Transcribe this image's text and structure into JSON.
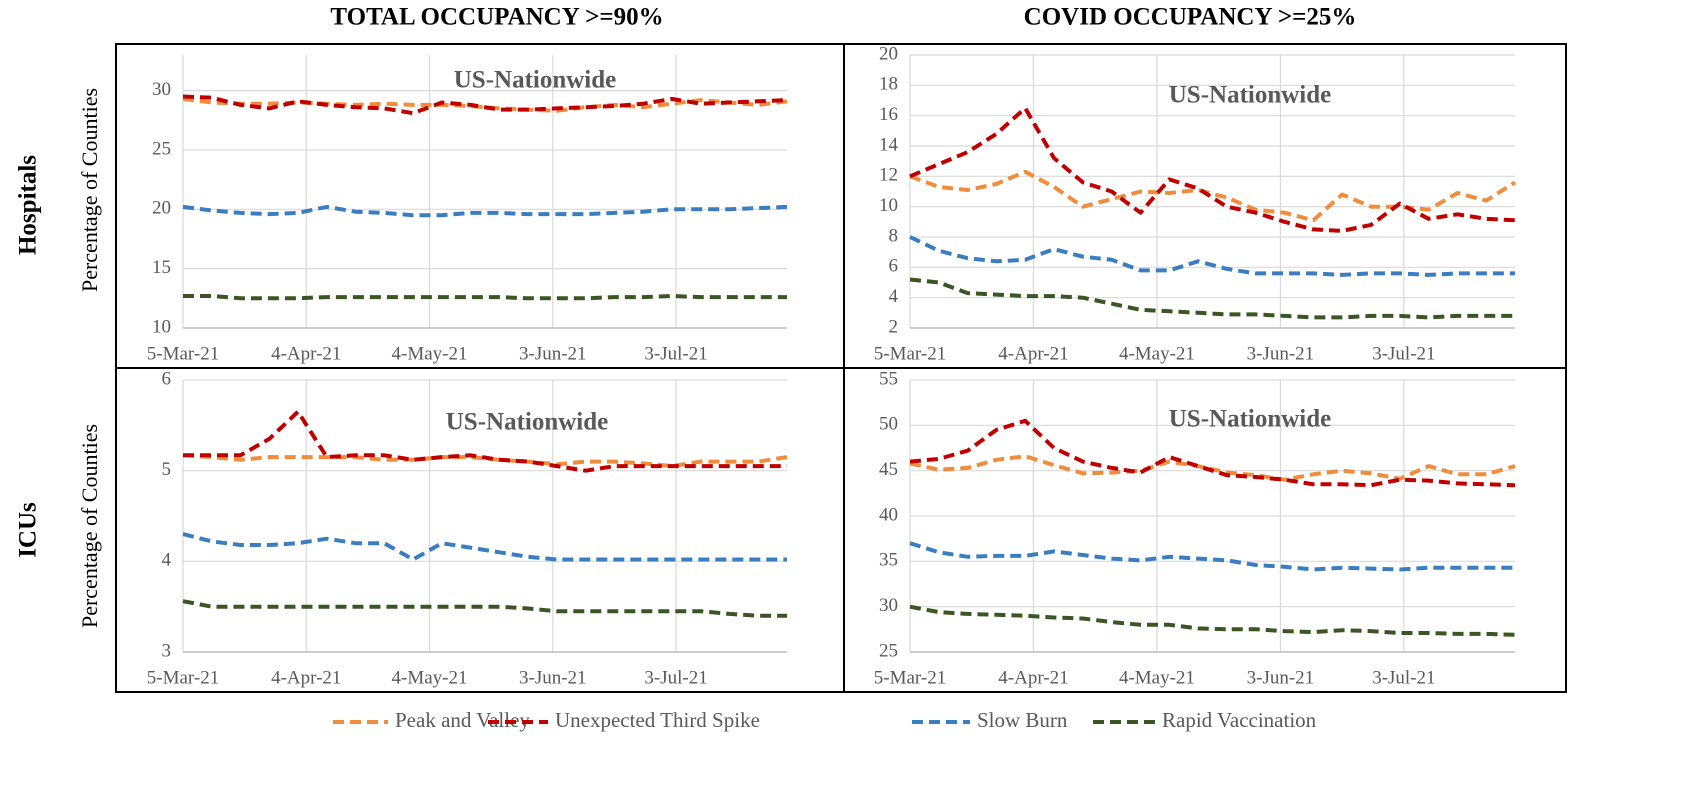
{
  "column_titles": [
    "TOTAL OCCUPANCY >=90%",
    "COVID OCCUPANCY >=25%"
  ],
  "row_labels": [
    "Hospitals",
    "ICUs"
  ],
  "chart_data": [
    {
      "type": "line",
      "annotation": "US-Nationwide",
      "y_label": "Percentage of Counties",
      "grid": true,
      "x": [
        "2021-03-05",
        "2021-03-12",
        "2021-03-19",
        "2021-03-26",
        "2021-04-02",
        "2021-04-09",
        "2021-04-16",
        "2021-04-23",
        "2021-04-30",
        "2021-05-07",
        "2021-05-14",
        "2021-05-21",
        "2021-05-28",
        "2021-06-04",
        "2021-06-11",
        "2021-06-18",
        "2021-06-25",
        "2021-07-02",
        "2021-07-09",
        "2021-07-16",
        "2021-07-23",
        "2021-07-30"
      ],
      "xlim": [
        "2021-03-05",
        "2021-07-30"
      ],
      "xticks": [
        {
          "value": "2021-03-05",
          "label": "5-Mar-21"
        },
        {
          "value": "2021-04-04",
          "label": "4-Apr-21"
        },
        {
          "value": "2021-05-04",
          "label": "4-May-21"
        },
        {
          "value": "2021-06-03",
          "label": "3-Jun-21"
        },
        {
          "value": "2021-07-03",
          "label": "3-Jul-21"
        }
      ],
      "ylim": [
        10,
        33
      ],
      "yticks": [
        10,
        15,
        20,
        25,
        30
      ],
      "series": [
        {
          "name": "Peak and Valley",
          "color": "#f08c3c",
          "values": [
            29.3,
            29,
            28.9,
            28.9,
            29,
            28.9,
            28.8,
            28.9,
            28.8,
            28.8,
            28.7,
            28.5,
            28.4,
            28.3,
            28.6,
            28.8,
            28.6,
            28.9,
            29.2,
            29,
            28.8,
            29.1
          ]
        },
        {
          "name": "Unexpected Third Spike",
          "color": "#c00000",
          "values": [
            29.5,
            29.4,
            28.8,
            28.5,
            29.1,
            28.8,
            28.6,
            28.5,
            28.1,
            29,
            28.8,
            28.4,
            28.4,
            28.5,
            28.6,
            28.7,
            28.9,
            29.3,
            28.9,
            29,
            29.1,
            29.2
          ]
        },
        {
          "name": "Slow Burn",
          "color": "#3a7dc0",
          "values": [
            20.2,
            19.9,
            19.7,
            19.6,
            19.7,
            20.2,
            19.8,
            19.7,
            19.5,
            19.5,
            19.7,
            19.7,
            19.6,
            19.6,
            19.6,
            19.7,
            19.8,
            20,
            20,
            20,
            20.1,
            20.2
          ]
        },
        {
          "name": "Rapid Vaccination",
          "color": "#385723",
          "values": [
            12.7,
            12.7,
            12.5,
            12.5,
            12.5,
            12.6,
            12.6,
            12.6,
            12.6,
            12.6,
            12.6,
            12.6,
            12.5,
            12.5,
            12.5,
            12.6,
            12.6,
            12.7,
            12.6,
            12.6,
            12.6,
            12.6
          ]
        }
      ]
    },
    {
      "type": "line",
      "annotation": "US-Nationwide",
      "grid": true,
      "x": [
        "2021-03-05",
        "2021-03-12",
        "2021-03-19",
        "2021-03-26",
        "2021-04-02",
        "2021-04-09",
        "2021-04-16",
        "2021-04-23",
        "2021-04-30",
        "2021-05-07",
        "2021-05-14",
        "2021-05-21",
        "2021-05-28",
        "2021-06-04",
        "2021-06-11",
        "2021-06-18",
        "2021-06-25",
        "2021-07-02",
        "2021-07-09",
        "2021-07-16",
        "2021-07-23",
        "2021-07-30"
      ],
      "xlim": [
        "2021-03-05",
        "2021-07-30"
      ],
      "xticks": [
        {
          "value": "2021-03-05",
          "label": "5-Mar-21"
        },
        {
          "value": "2021-04-04",
          "label": "4-Apr-21"
        },
        {
          "value": "2021-05-04",
          "label": "4-May-21"
        },
        {
          "value": "2021-06-03",
          "label": "3-Jun-21"
        },
        {
          "value": "2021-07-03",
          "label": "3-Jul-21"
        }
      ],
      "ylim": [
        2,
        20
      ],
      "yticks": [
        2,
        4,
        6,
        8,
        10,
        12,
        14,
        16,
        18,
        20
      ],
      "series": [
        {
          "color": "#f08c3c",
          "values": [
            12,
            11.3,
            11.1,
            11.5,
            12.3,
            11.3,
            10,
            10.5,
            11,
            10.9,
            11.1,
            10.6,
            9.8,
            9.6,
            9.1,
            10.8,
            10,
            10,
            9.8,
            10.9,
            10.4,
            11.6
          ]
        },
        {
          "color": "#c00000",
          "values": [
            12,
            12.8,
            13.6,
            14.8,
            16.5,
            13.2,
            11.6,
            11,
            9.6,
            11.8,
            11.2,
            10,
            9.6,
            9,
            8.5,
            8.4,
            8.8,
            10.2,
            9.2,
            9.5,
            9.2,
            9.1
          ]
        },
        {
          "color": "#3a7dc0",
          "values": [
            8,
            7.1,
            6.6,
            6.4,
            6.5,
            7.2,
            6.7,
            6.5,
            5.8,
            5.8,
            6.4,
            5.9,
            5.6,
            5.6,
            5.6,
            5.5,
            5.6,
            5.6,
            5.5,
            5.6,
            5.6,
            5.6
          ]
        },
        {
          "color": "#385723",
          "values": [
            5.2,
            5,
            4.3,
            4.2,
            4.1,
            4.1,
            4,
            3.6,
            3.2,
            3.1,
            3,
            2.9,
            2.9,
            2.8,
            2.7,
            2.7,
            2.8,
            2.8,
            2.7,
            2.8,
            2.8,
            2.8
          ]
        }
      ]
    },
    {
      "type": "line",
      "annotation": "US-Nationwide",
      "y_label": "Percentage of Counties",
      "grid": true,
      "x": [
        "2021-03-05",
        "2021-03-12",
        "2021-03-19",
        "2021-03-26",
        "2021-04-02",
        "2021-04-09",
        "2021-04-16",
        "2021-04-23",
        "2021-04-30",
        "2021-05-07",
        "2021-05-14",
        "2021-05-21",
        "2021-05-28",
        "2021-06-04",
        "2021-06-11",
        "2021-06-18",
        "2021-06-25",
        "2021-07-02",
        "2021-07-09",
        "2021-07-16",
        "2021-07-23",
        "2021-07-30"
      ],
      "xlim": [
        "2021-03-05",
        "2021-07-30"
      ],
      "xticks": [
        {
          "value": "2021-03-05",
          "label": "5-Mar-21"
        },
        {
          "value": "2021-04-04",
          "label": "4-Apr-21"
        },
        {
          "value": "2021-05-04",
          "label": "4-May-21"
        },
        {
          "value": "2021-06-03",
          "label": "3-Jun-21"
        },
        {
          "value": "2021-07-03",
          "label": "3-Jul-21"
        }
      ],
      "ylim": [
        3,
        6
      ],
      "yticks": [
        3,
        4,
        5,
        6
      ],
      "series": [
        {
          "color": "#f08c3c",
          "values": [
            5.17,
            5.15,
            5.12,
            5.15,
            5.15,
            5.15,
            5.15,
            5.12,
            5.12,
            5.15,
            5.15,
            5.12,
            5.1,
            5.07,
            5.1,
            5.1,
            5.08,
            5.05,
            5.1,
            5.1,
            5.1,
            5.15
          ]
        },
        {
          "color": "#c00000",
          "values": [
            5.17,
            5.17,
            5.17,
            5.35,
            5.65,
            5.15,
            5.17,
            5.17,
            5.12,
            5.15,
            5.17,
            5.12,
            5.1,
            5.05,
            5,
            5.05,
            5.05,
            5.05,
            5.05,
            5.05,
            5.05,
            5.05
          ]
        },
        {
          "color": "#3a7dc0",
          "values": [
            4.3,
            4.22,
            4.18,
            4.18,
            4.2,
            4.25,
            4.2,
            4.2,
            4.02,
            4.2,
            4.15,
            4.1,
            4.05,
            4.02,
            4.02,
            4.02,
            4.02,
            4.02,
            4.02,
            4.02,
            4.02,
            4.02
          ]
        },
        {
          "color": "#385723",
          "values": [
            3.56,
            3.5,
            3.5,
            3.5,
            3.5,
            3.5,
            3.5,
            3.5,
            3.5,
            3.5,
            3.5,
            3.5,
            3.48,
            3.45,
            3.45,
            3.45,
            3.45,
            3.45,
            3.45,
            3.42,
            3.4,
            3.4
          ]
        }
      ]
    },
    {
      "type": "line",
      "annotation": "US-Nationwide",
      "grid": true,
      "x": [
        "2021-03-05",
        "2021-03-12",
        "2021-03-19",
        "2021-03-26",
        "2021-04-02",
        "2021-04-09",
        "2021-04-16",
        "2021-04-23",
        "2021-04-30",
        "2021-05-07",
        "2021-05-14",
        "2021-05-21",
        "2021-05-28",
        "2021-06-04",
        "2021-06-11",
        "2021-06-18",
        "2021-06-25",
        "2021-07-02",
        "2021-07-09",
        "2021-07-16",
        "2021-07-23",
        "2021-07-30"
      ],
      "xlim": [
        "2021-03-05",
        "2021-07-30"
      ],
      "xticks": [
        {
          "value": "2021-03-05",
          "label": "5-Mar-21"
        },
        {
          "value": "2021-04-04",
          "label": "4-Apr-21"
        },
        {
          "value": "2021-05-04",
          "label": "4-May-21"
        },
        {
          "value": "2021-06-03",
          "label": "3-Jun-21"
        },
        {
          "value": "2021-07-03",
          "label": "3-Jul-21"
        }
      ],
      "ylim": [
        25,
        55
      ],
      "yticks": [
        25,
        30,
        35,
        40,
        45,
        50,
        55
      ],
      "series": [
        {
          "color": "#f08c3c",
          "values": [
            45.8,
            45.1,
            45.3,
            46.2,
            46.6,
            45.6,
            44.7,
            44.8,
            45,
            46,
            45.5,
            44.8,
            44.5,
            44,
            44.6,
            45,
            44.7,
            44.1,
            45.5,
            44.6,
            44.6,
            45.5
          ]
        },
        {
          "color": "#c00000",
          "values": [
            46,
            46.3,
            47.2,
            49.5,
            50.5,
            47.5,
            46,
            45.3,
            44.8,
            46.5,
            45.5,
            44.5,
            44.3,
            44,
            43.5,
            43.5,
            43.4,
            44,
            43.9,
            43.6,
            43.5,
            43.4
          ]
        },
        {
          "color": "#3a7dc0",
          "values": [
            37,
            36,
            35.5,
            35.6,
            35.6,
            36.1,
            35.7,
            35.3,
            35.1,
            35.5,
            35.3,
            35.1,
            34.6,
            34.4,
            34.1,
            34.3,
            34.2,
            34.1,
            34.3,
            34.3,
            34.3,
            34.3
          ]
        },
        {
          "color": "#385723",
          "values": [
            30,
            29.4,
            29.2,
            29.1,
            29,
            28.8,
            28.7,
            28.3,
            28,
            28,
            27.6,
            27.5,
            27.5,
            27.3,
            27.2,
            27.4,
            27.3,
            27.1,
            27.1,
            27,
            27,
            26.9
          ]
        }
      ]
    }
  ]
}
